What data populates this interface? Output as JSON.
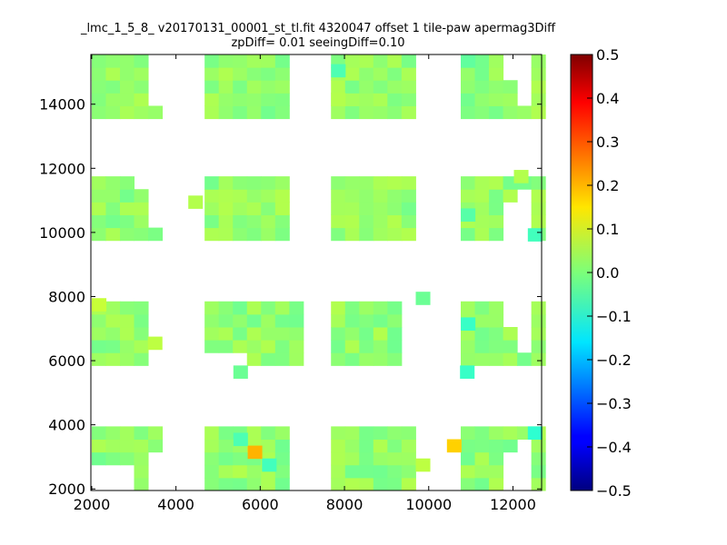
{
  "chart_data": {
    "type": "heatmap",
    "title": "_lmc_1_5_8_ v20170131_00001_st_tl.fit 4320047 offset 1 tile-paw apermag3Diff",
    "subtitle": "zpDiff= 0.01 seeingDiff=0.10",
    "xlabel": "",
    "ylabel": "",
    "xlim": [
      1980,
      12680
    ],
    "ylim": [
      1950,
      15550
    ],
    "x_ticks": [
      "2000",
      "4000",
      "6000",
      "8000",
      "10000",
      "12000"
    ],
    "x_tick_values": [
      2000,
      4000,
      6000,
      8000,
      10000,
      12000
    ],
    "y_ticks": [
      "2000",
      "4000",
      "6000",
      "8000",
      "10000",
      "12000",
      "14000"
    ],
    "y_tick_values": [
      2000,
      4000,
      6000,
      8000,
      10000,
      12000,
      14000
    ],
    "colorbar": {
      "colormap": "jet",
      "range": [
        -0.5,
        0.5
      ],
      "ticks": [
        "0.5",
        "0.4",
        "0.3",
        "0.2",
        "0.1",
        "0.0",
        "−0.1",
        "−0.2",
        "−0.3",
        "−0.4",
        "−0.5"
      ],
      "tick_values": [
        0.5,
        0.4,
        0.3,
        0.2,
        0.1,
        0.0,
        -0.1,
        -0.2,
        -0.3,
        -0.4,
        -0.5
      ]
    },
    "cell_size": [
      335,
      400
    ],
    "blocks_x": [
      [
        2000,
        3680
      ],
      [
        4680,
        6960
      ],
      [
        7680,
        10000
      ],
      [
        10760,
        12680
      ]
    ],
    "blocks_y": [
      [
        1950,
        4050
      ],
      [
        5850,
        8050
      ],
      [
        9750,
        11750
      ],
      [
        13550,
        15550
      ]
    ],
    "missing_cells": [
      [
        2330,
        2350
      ],
      [
        2665,
        2350
      ],
      [
        3670,
        2350
      ],
      [
        3670,
        2750
      ],
      [
        4015,
        2350
      ],
      [
        4015,
        2750
      ],
      [
        4015,
        3150
      ],
      [
        4015,
        3550
      ],
      [
        4015,
        3950
      ],
      [
        3670,
        6350
      ],
      [
        3670,
        5950
      ],
      [
        3670,
        6750
      ],
      [
        3670,
        7150
      ],
      [
        3670,
        7550
      ],
      [
        3670,
        7950
      ],
      [
        4015,
        6350
      ],
      [
        4015,
        6750
      ],
      [
        4015,
        7150
      ],
      [
        4015,
        7550
      ],
      [
        4015,
        5950
      ],
      [
        5355,
        6150
      ],
      [
        5015,
        6150
      ],
      [
        5015,
        5950
      ],
      [
        5355,
        5950
      ],
      [
        7010,
        2350
      ],
      [
        7010,
        2750
      ],
      [
        7010,
        3150
      ],
      [
        7010,
        3550
      ],
      [
        7010,
        3950
      ],
      [
        10035,
        2350
      ],
      [
        10035,
        2750
      ],
      [
        10035,
        3150
      ],
      [
        10035,
        3550
      ],
      [
        10035,
        3950
      ],
      [
        9705,
        6350
      ],
      [
        9705,
        5950
      ],
      [
        9705,
        6750
      ],
      [
        9705,
        7150
      ],
      [
        9705,
        7550
      ],
      [
        10035,
        7950
      ],
      [
        12015,
        2350
      ],
      [
        12015,
        2750
      ],
      [
        12350,
        2350
      ],
      [
        12350,
        2750
      ],
      [
        12350,
        3150
      ],
      [
        12015,
        7550
      ],
      [
        12350,
        7550
      ],
      [
        12015,
        7150
      ],
      [
        12350,
        7150
      ],
      [
        12350,
        6750
      ],
      [
        12350,
        6350
      ],
      [
        12015,
        10150
      ],
      [
        12350,
        10150
      ],
      [
        12350,
        10550
      ],
      [
        12350,
        10950
      ],
      [
        12015,
        10550
      ],
      [
        3335,
        11750
      ],
      [
        3670,
        11350
      ],
      [
        3670,
        10950
      ],
      [
        3670,
        10550
      ],
      [
        4015,
        10150
      ],
      [
        4015,
        10550
      ],
      [
        4015,
        10950
      ],
      [
        4015,
        11350
      ],
      [
        7010,
        10150
      ],
      [
        7010,
        10550
      ],
      [
        7010,
        10950
      ],
      [
        7010,
        11350
      ],
      [
        7010,
        11750
      ],
      [
        10035,
        10150
      ],
      [
        10035,
        10550
      ],
      [
        10035,
        10950
      ],
      [
        10035,
        11350
      ],
      [
        10035,
        11750
      ],
      [
        3670,
        14350
      ],
      [
        3670,
        14750
      ],
      [
        3670,
        15150
      ],
      [
        4015,
        14750
      ],
      [
        4015,
        15150
      ],
      [
        4015,
        14350
      ],
      [
        4015,
        13950
      ],
      [
        10035,
        13950
      ],
      [
        10035,
        14350
      ],
      [
        10035,
        14750
      ],
      [
        10035,
        15150
      ],
      [
        12015,
        15150
      ],
      [
        12350,
        15150
      ],
      [
        12350,
        14750
      ],
      [
        12350,
        14350
      ],
      [
        7010,
        13950
      ],
      [
        7010,
        14350
      ],
      [
        7010,
        14750
      ],
      [
        7010,
        15150
      ]
    ],
    "extra_cells": [
      {
        "x": 10600,
        "y": 3350,
        "value": 0.17
      },
      {
        "x": 12520,
        "y": 3750,
        "value": -0.08
      },
      {
        "x": 12520,
        "y": 9930,
        "value": -0.06
      },
      {
        "x": 4460,
        "y": 10950,
        "value": 0.05
      },
      {
        "x": 12190,
        "y": 11750,
        "value": 0.05
      },
      {
        "x": 10910,
        "y": 5650,
        "value": -0.07
      },
      {
        "x": 5530,
        "y": 5650,
        "value": -0.02
      },
      {
        "x": 9860,
        "y": 7950,
        "value": -0.02
      },
      {
        "x": 5870,
        "y": 3150,
        "value": 0.2
      },
      {
        "x": 5530,
        "y": 3550,
        "value": -0.05
      }
    ],
    "highlighted_values": [
      {
        "x": 2170,
        "y": 7750,
        "value": 0.07
      },
      {
        "x": 3500,
        "y": 6550,
        "value": 0.06
      },
      {
        "x": 7850,
        "y": 14150,
        "value": 0.05
      },
      {
        "x": 10930,
        "y": 7150,
        "value": -0.07
      },
      {
        "x": 7850,
        "y": 15050,
        "value": -0.05
      },
      {
        "x": 10930,
        "y": 10550,
        "value": -0.04
      },
      {
        "x": 6210,
        "y": 2750,
        "value": -0.06
      },
      {
        "x": 10930,
        "y": 15350,
        "value": -0.03
      },
      {
        "x": 9860,
        "y": 2750,
        "value": 0.06
      }
    ],
    "value_range_typical": [
      -0.05,
      0.05
    ]
  }
}
